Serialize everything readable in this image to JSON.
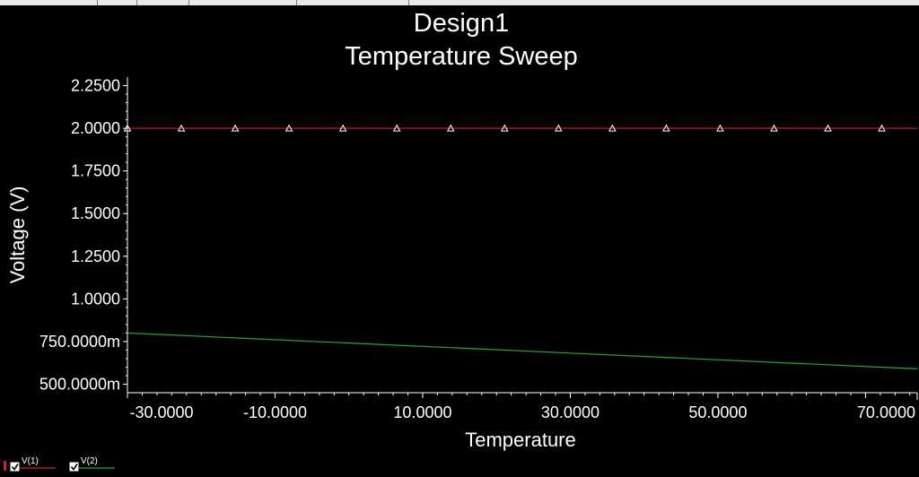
{
  "chart_data": {
    "type": "line",
    "title": "Design1",
    "subtitle": "Temperature Sweep",
    "xlabel": "Temperature",
    "ylabel": "Voltage (V)",
    "xlim": [
      -30.0,
      77.0
    ],
    "ylim": [
      0.45,
      2.3
    ],
    "x_tick_labels": [
      "-30.0000",
      "-10.0000",
      "10.0000",
      "30.0000",
      "50.0000",
      "70.0000"
    ],
    "x_tick_values": [
      -30,
      -10,
      10,
      30,
      50,
      70
    ],
    "y_tick_labels": [
      "500.0000m",
      "750.0000m",
      "1.0000",
      "1.2500",
      "1.5000",
      "1.7500",
      "2.0000",
      "2.2500"
    ],
    "y_tick_values": [
      0.5,
      0.75,
      1.0,
      1.25,
      1.5,
      1.75,
      2.0,
      2.25
    ],
    "series": [
      {
        "name": "V(1)",
        "color": "#d42020",
        "marker": "triangle",
        "x": [
          -30,
          77
        ],
        "y": [
          2.0,
          2.0
        ],
        "marker_x": [
          -30,
          -22.7,
          -15.4,
          -8.1,
          -0.8,
          6.5,
          13.8,
          21.1,
          28.4,
          35.7,
          43.0,
          50.3,
          57.6,
          64.9,
          72.2
        ],
        "marker_y": [
          2.0,
          2.0,
          2.0,
          2.0,
          2.0,
          2.0,
          2.0,
          2.0,
          2.0,
          2.0,
          2.0,
          2.0,
          2.0,
          2.0,
          2.0
        ]
      },
      {
        "name": "V(2)",
        "color": "#22aa33",
        "x": [
          -30,
          77
        ],
        "y": [
          0.8,
          0.59
        ]
      }
    ],
    "grid": false,
    "legend_position": "bottom-left",
    "background": "#000000",
    "axis_color": "#ffffff",
    "text_color": "#ffffff"
  },
  "legend": {
    "items": [
      {
        "label": "V(1)",
        "checked": true,
        "color": "#d42020"
      },
      {
        "label": "V(2)",
        "checked": true,
        "color": "#22aa33"
      }
    ]
  }
}
